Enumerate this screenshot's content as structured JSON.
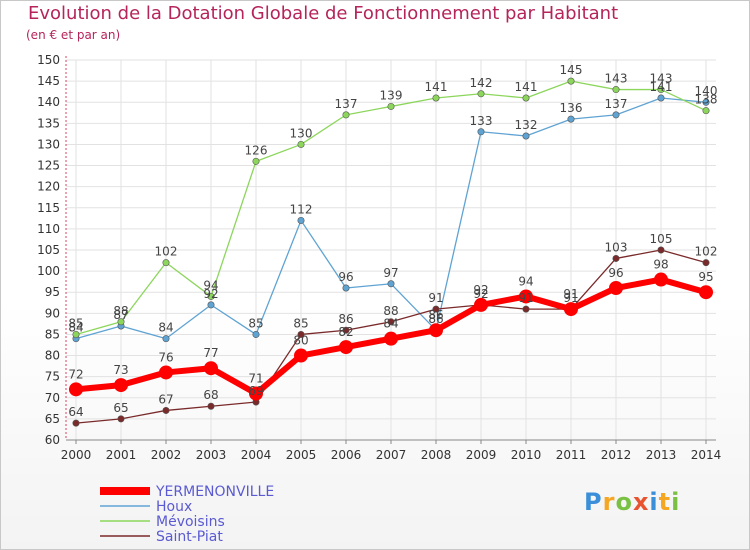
{
  "title": "Evolution de la Dotation Globale de Fonctionnement par Habitant",
  "subtitle": "(en € et par an)",
  "logo": {
    "text": "Proxiti",
    "colors": [
      "#3a8fd8",
      "#f5a623",
      "#7ac143",
      "#e8542f",
      "#3a8fd8",
      "#f5a623",
      "#7ac143"
    ]
  },
  "chart_data": {
    "type": "line",
    "x": [
      "2000",
      "2001",
      "2002",
      "2003",
      "2004",
      "2005",
      "2006",
      "2007",
      "2008",
      "2009",
      "2010",
      "2011",
      "2012",
      "2013",
      "2014"
    ],
    "ylim": [
      60,
      150
    ],
    "yticks": [
      60,
      65,
      70,
      75,
      80,
      85,
      90,
      95,
      100,
      105,
      110,
      115,
      120,
      125,
      130,
      135,
      140,
      145,
      150
    ],
    "grid": true,
    "legend_position": "bottom-left",
    "series": [
      {
        "name": "YERMENONVILLE",
        "color": "#ff0000",
        "values": [
          72,
          73,
          76,
          77,
          71,
          80,
          82,
          84,
          86,
          92,
          94,
          91,
          96,
          98,
          95
        ]
      },
      {
        "name": "Houx",
        "color": "#5fa3d3",
        "values": [
          84,
          87,
          84,
          92,
          85,
          112,
          96,
          97,
          86,
          133,
          132,
          136,
          137,
          141,
          140
        ]
      },
      {
        "name": "Mévoisins",
        "color": "#8cd65c",
        "values": [
          85,
          88,
          102,
          94,
          126,
          130,
          137,
          139,
          141,
          142,
          141,
          145,
          143,
          143,
          138
        ]
      },
      {
        "name": "Saint-Piat",
        "color": "#7a2a2a",
        "values": [
          64,
          65,
          67,
          68,
          69,
          85,
          86,
          88,
          91,
          92,
          91,
          91,
          103,
          105,
          102
        ]
      }
    ]
  }
}
